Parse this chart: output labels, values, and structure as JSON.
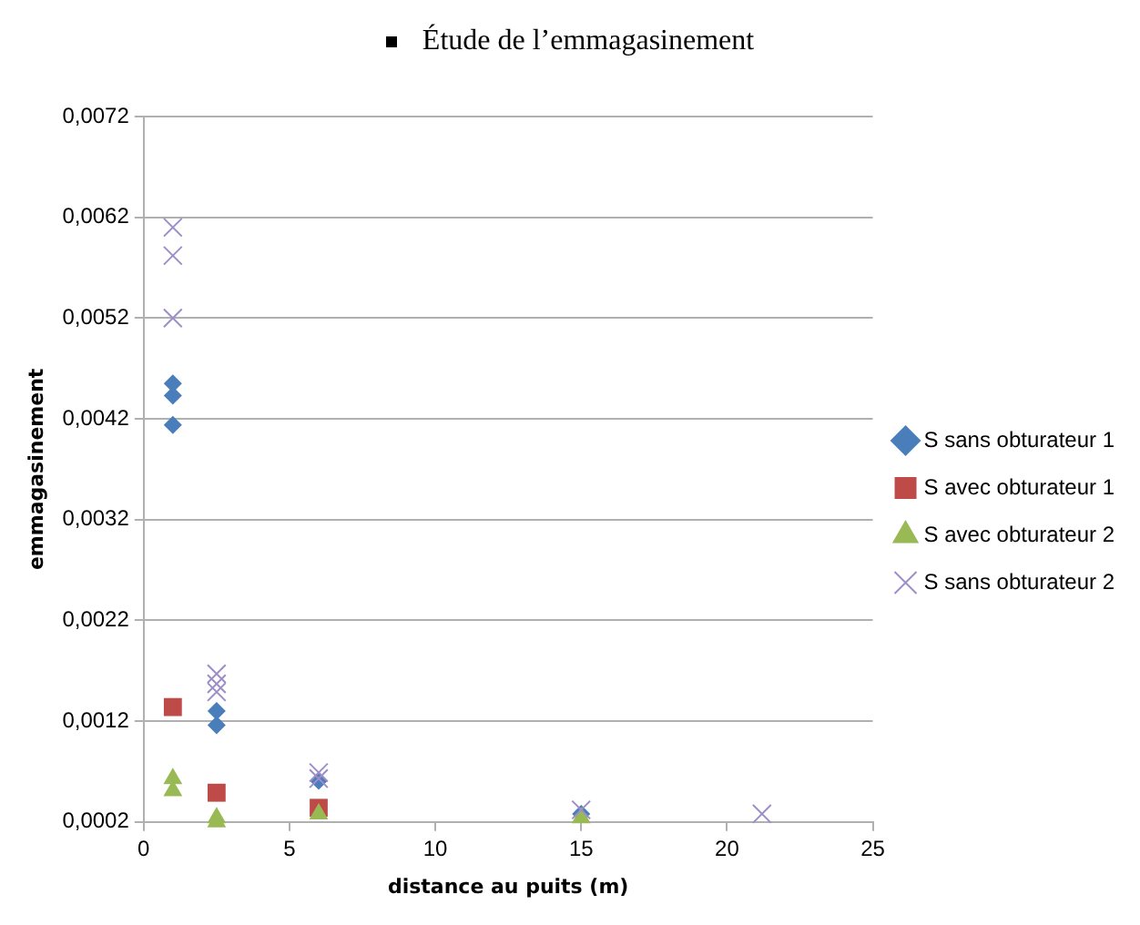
{
  "chart_data": {
    "type": "scatter",
    "title": "Étude de l’emmagasinement",
    "xlabel": "distance au puits (m)",
    "ylabel": "emmagasinement",
    "xlim": [
      0,
      25
    ],
    "xticks": [
      0,
      5,
      10,
      15,
      20,
      25
    ],
    "ylim": [
      0.0002,
      0.0072
    ],
    "yticks": [
      {
        "value": 0.0002,
        "label": "0,0002"
      },
      {
        "value": 0.0012,
        "label": "0,0012"
      },
      {
        "value": 0.0022,
        "label": "0,0022"
      },
      {
        "value": 0.0032,
        "label": "0,0032"
      },
      {
        "value": 0.0042,
        "label": "0,0042"
      },
      {
        "value": 0.0052,
        "label": "0,0052"
      },
      {
        "value": 0.0062,
        "label": "0,0062"
      },
      {
        "value": 0.0072,
        "label": "0,0072"
      }
    ],
    "grid": "y",
    "legend": "right",
    "series": [
      {
        "name": "S sans obturateur 1",
        "color": "#4a7ebb",
        "marker": "diamond",
        "x": [
          1,
          1,
          1,
          2.5,
          2.5,
          6,
          15
        ],
        "values": [
          0.00455,
          0.00443,
          0.00414,
          0.0013,
          0.00116,
          0.00061,
          0.00028
        ]
      },
      {
        "name": "S avec obturateur 1",
        "color": "#be4b48",
        "marker": "square",
        "x": [
          1,
          2.5,
          6
        ],
        "values": [
          0.00134,
          0.00049,
          0.00034
        ]
      },
      {
        "name": "S avec obturateur 2",
        "color": "#98b954",
        "marker": "triangle",
        "x": [
          1,
          1,
          2.5,
          2.5,
          6,
          15
        ],
        "values": [
          0.00063,
          0.00051,
          0.00024,
          0.0002,
          0.00028,
          0.00024
        ]
      },
      {
        "name": "S sans obturateur 2",
        "color": "#9d8ec8",
        "marker": "cross",
        "x": [
          1,
          1,
          1,
          2.5,
          2.5,
          2.5,
          6,
          6,
          15,
          21.2
        ],
        "values": [
          0.0061,
          0.00582,
          0.0052,
          0.00167,
          0.00157,
          0.00149,
          0.00069,
          0.00063,
          0.00032,
          0.00028
        ]
      }
    ]
  }
}
